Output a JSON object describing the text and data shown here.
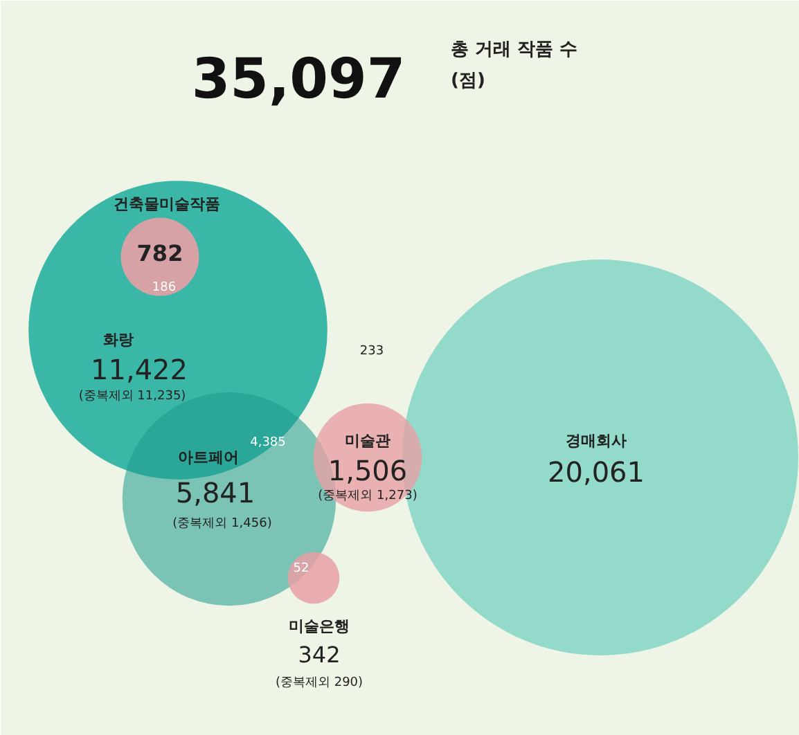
{
  "chart_data": {
    "type": "other",
    "title": "35,097",
    "subtitle": "총 거래 작품 수\n(점)",
    "categories": [
      "건축물미술작품",
      "화랑",
      "아트페어",
      "미술관",
      "미술은행",
      "경매회사"
    ],
    "values": [
      782,
      11422,
      5841,
      1506,
      342,
      20061
    ],
    "value_labels": [
      "782",
      "11,422",
      "5,841",
      "1,506",
      "342",
      "20,061"
    ],
    "colors": [
      "#e8a0a5",
      "#2fb3a3",
      "#1e9a8c",
      "#e8a0a5",
      "#e8a0a5",
      "#8dd8c8"
    ],
    "annotations": [
      "(중복제외 11,235)",
      "(중복제외 1,456)",
      "(중복제외 1,273)",
      "(중복제외 290)",
      "186",
      "4,385",
      "233",
      "52"
    ]
  }
}
